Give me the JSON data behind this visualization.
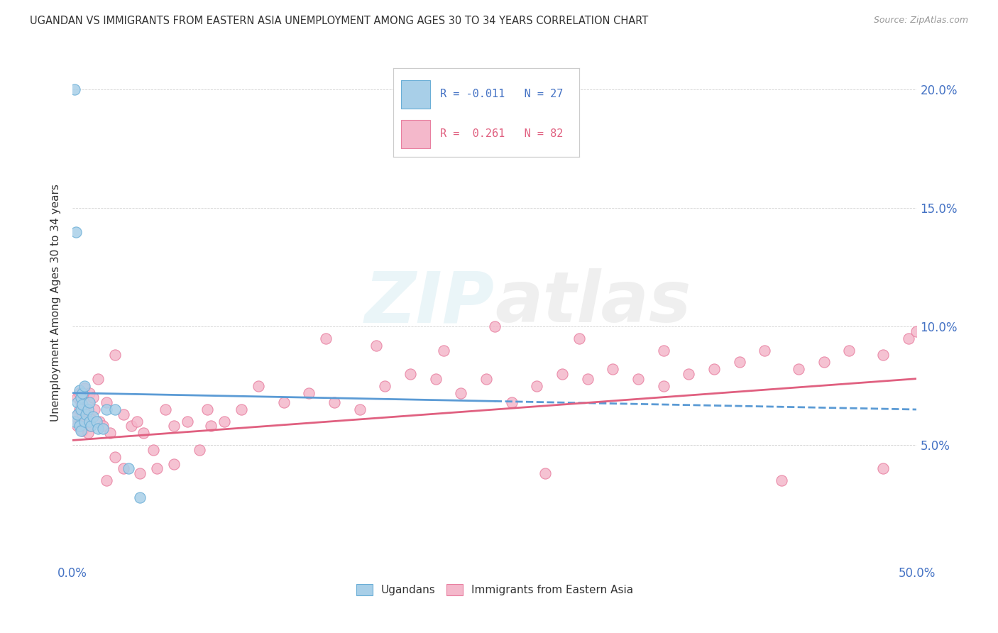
{
  "title": "UGANDAN VS IMMIGRANTS FROM EASTERN ASIA UNEMPLOYMENT AMONG AGES 30 TO 34 YEARS CORRELATION CHART",
  "source": "Source: ZipAtlas.com",
  "ylabel": "Unemployment Among Ages 30 to 34 years",
  "xlim": [
    0.0,
    0.5
  ],
  "ylim": [
    0.0,
    0.22
  ],
  "xtick_vals": [
    0.0,
    0.05,
    0.1,
    0.15,
    0.2,
    0.25,
    0.3,
    0.35,
    0.4,
    0.45,
    0.5
  ],
  "yticks_right": [
    0.05,
    0.1,
    0.15,
    0.2
  ],
  "color_blue": "#a8cfe8",
  "color_blue_edge": "#6aaed6",
  "color_pink": "#f4b8cb",
  "color_pink_edge": "#e87fa0",
  "color_blue_line": "#5b9bd5",
  "color_pink_line": "#e06080",
  "background_color": "#ffffff",
  "ugandan_x": [
    0.001,
    0.001,
    0.002,
    0.003,
    0.003,
    0.004,
    0.004,
    0.005,
    0.005,
    0.005,
    0.006,
    0.006,
    0.007,
    0.007,
    0.008,
    0.009,
    0.01,
    0.01,
    0.011,
    0.012,
    0.014,
    0.015,
    0.018,
    0.02,
    0.025,
    0.033,
    0.04
  ],
  "ugandan_y": [
    0.2,
    0.06,
    0.14,
    0.063,
    0.068,
    0.058,
    0.073,
    0.065,
    0.07,
    0.056,
    0.067,
    0.072,
    0.06,
    0.075,
    0.063,
    0.065,
    0.06,
    0.068,
    0.058,
    0.062,
    0.06,
    0.057,
    0.057,
    0.065,
    0.065,
    0.04,
    0.028
  ],
  "eastern_asia_x": [
    0.002,
    0.003,
    0.003,
    0.004,
    0.004,
    0.005,
    0.005,
    0.006,
    0.006,
    0.007,
    0.007,
    0.008,
    0.008,
    0.009,
    0.009,
    0.01,
    0.01,
    0.011,
    0.012,
    0.013,
    0.015,
    0.016,
    0.018,
    0.02,
    0.022,
    0.025,
    0.03,
    0.035,
    0.038,
    0.042,
    0.048,
    0.055,
    0.06,
    0.068,
    0.075,
    0.082,
    0.09,
    0.1,
    0.11,
    0.125,
    0.14,
    0.155,
    0.17,
    0.185,
    0.2,
    0.215,
    0.23,
    0.245,
    0.26,
    0.275,
    0.29,
    0.305,
    0.32,
    0.335,
    0.35,
    0.365,
    0.38,
    0.395,
    0.41,
    0.43,
    0.445,
    0.46,
    0.48,
    0.495,
    0.5,
    0.25,
    0.3,
    0.35,
    0.22,
    0.15,
    0.18,
    0.08,
    0.05,
    0.025,
    0.04,
    0.02,
    0.03,
    0.06,
    0.28,
    0.42,
    0.48
  ],
  "eastern_asia_y": [
    0.062,
    0.058,
    0.07,
    0.065,
    0.072,
    0.06,
    0.068,
    0.056,
    0.063,
    0.058,
    0.074,
    0.065,
    0.06,
    0.068,
    0.055,
    0.062,
    0.072,
    0.058,
    0.07,
    0.065,
    0.078,
    0.06,
    0.058,
    0.068,
    0.055,
    0.088,
    0.063,
    0.058,
    0.06,
    0.055,
    0.048,
    0.065,
    0.058,
    0.06,
    0.048,
    0.058,
    0.06,
    0.065,
    0.075,
    0.068,
    0.072,
    0.068,
    0.065,
    0.075,
    0.08,
    0.078,
    0.072,
    0.078,
    0.068,
    0.075,
    0.08,
    0.078,
    0.082,
    0.078,
    0.075,
    0.08,
    0.082,
    0.085,
    0.09,
    0.082,
    0.085,
    0.09,
    0.088,
    0.095,
    0.098,
    0.1,
    0.095,
    0.09,
    0.09,
    0.095,
    0.092,
    0.065,
    0.04,
    0.045,
    0.038,
    0.035,
    0.04,
    0.042,
    0.038,
    0.035,
    0.04
  ],
  "blue_trendline_y0": 0.072,
  "blue_trendline_y1": 0.065,
  "pink_trendline_y0": 0.052,
  "pink_trendline_y1": 0.078
}
